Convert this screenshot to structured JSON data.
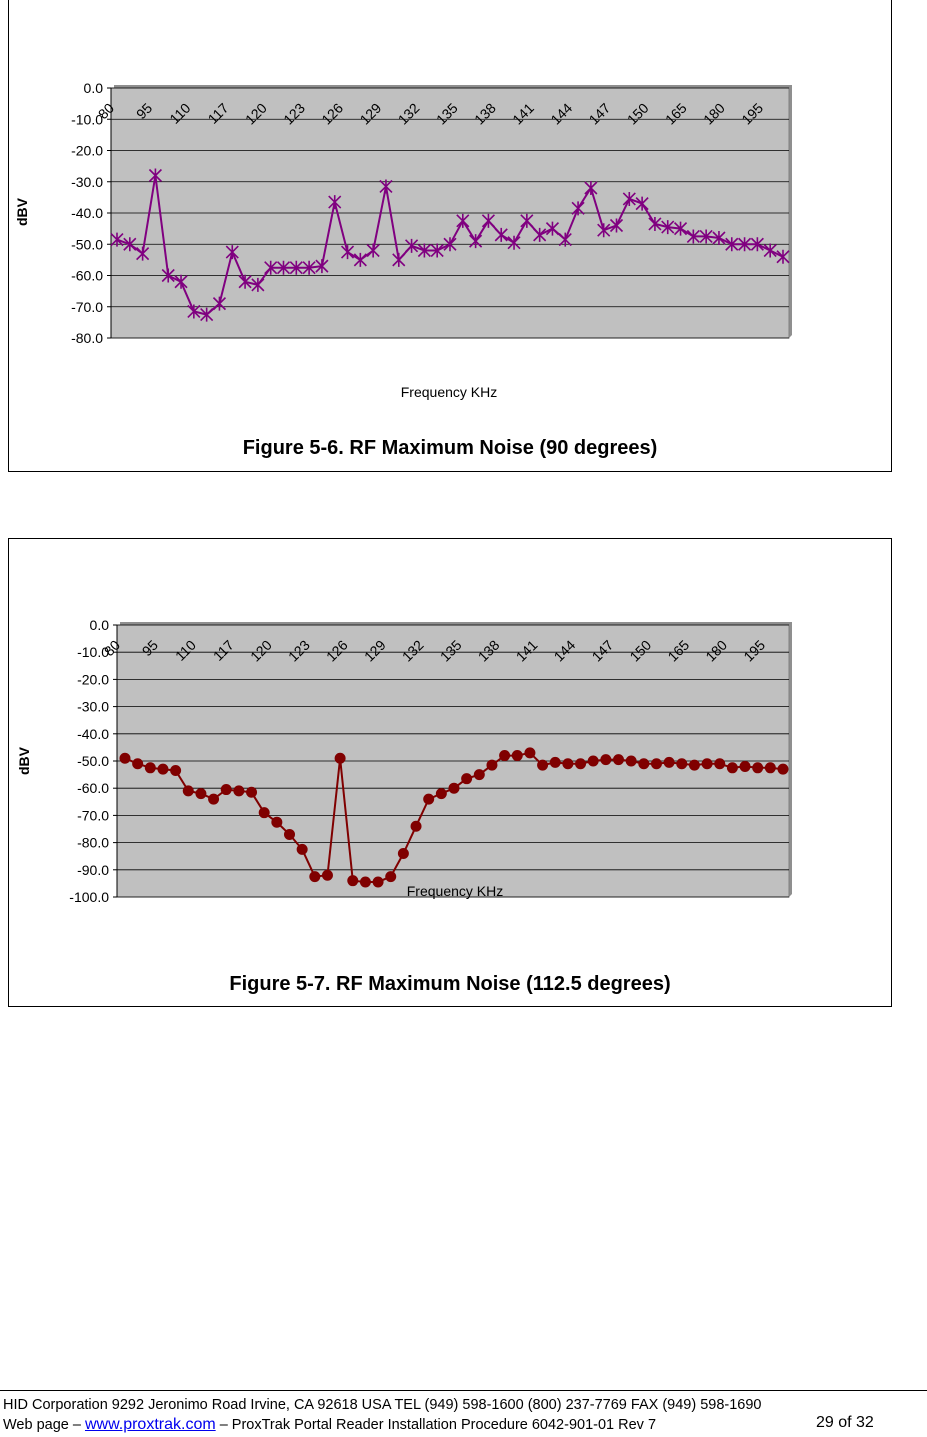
{
  "figures": [
    {
      "caption": "Figure 5-6. RF Maximum Noise (90 degrees)"
    },
    {
      "caption": "Figure 5-7. RF Maximum Noise (112.5 degrees)"
    }
  ],
  "chart_data": [
    {
      "type": "line",
      "title": "",
      "xlabel": "Frequency KHz",
      "ylabel": "dBV",
      "ylim": [
        -80,
        0
      ],
      "yticks": [
        "0.0",
        "-10.0",
        "-20.0",
        "-30.0",
        "-40.0",
        "-50.0",
        "-60.0",
        "-70.0",
        "-80.0"
      ],
      "xtick_labels": [
        "80",
        "95",
        "110",
        "117",
        "120",
        "123",
        "126",
        "129",
        "132",
        "135",
        "138",
        "141",
        "144",
        "147",
        "150",
        "165",
        "180",
        "195"
      ],
      "marker": "star",
      "color": "#800080",
      "grid": true,
      "plot_background": "#c0c0c0",
      "values": [
        -48.5,
        -50,
        -53,
        -28,
        -60,
        -62,
        -71.5,
        -72.5,
        -69,
        -52.5,
        -62,
        -63,
        -57.5,
        -57.5,
        -57.5,
        -57.5,
        -57,
        -36.5,
        -52.5,
        -55,
        -52,
        -31.5,
        -55,
        -50.5,
        -52,
        -52,
        -50,
        -42.5,
        -49,
        -42.5,
        -47,
        -49.5,
        -42.5,
        -47,
        -45,
        -48.5,
        -38.5,
        -32,
        -45.5,
        -44,
        -35.5,
        -37,
        -43.5,
        -44.5,
        -45,
        -47.5,
        -47.5,
        -48,
        -50,
        -50,
        -50,
        -52,
        -54
      ]
    },
    {
      "type": "line",
      "title": "",
      "xlabel": "Frequency KHz",
      "ylabel": "dBV",
      "ylim": [
        -100,
        0
      ],
      "yticks": [
        "0.0",
        "-10.0",
        "-20.0",
        "-30.0",
        "-40.0",
        "-50.0",
        "-60.0",
        "-70.0",
        "-80.0",
        "-90.0",
        "-100.0"
      ],
      "xtick_labels": [
        "80",
        "95",
        "110",
        "117",
        "120",
        "123",
        "126",
        "129",
        "132",
        "135",
        "138",
        "141",
        "144",
        "147",
        "150",
        "165",
        "180",
        "195"
      ],
      "marker": "circle",
      "color": "#800000",
      "grid": true,
      "plot_background": "#c0c0c0",
      "values": [
        -49,
        -51,
        -52.5,
        -53,
        -53.5,
        -61,
        -62,
        -64,
        -60.5,
        -61,
        -61.5,
        -69,
        -72.5,
        -77,
        -82.5,
        -92.5,
        -92,
        -49,
        -94,
        -94.5,
        -94.5,
        -92.5,
        -84,
        -74,
        -64,
        -62,
        -60,
        -56.5,
        -55,
        -51.5,
        -48,
        -48,
        -47,
        -51.5,
        -50.5,
        -51,
        -51,
        -50,
        -49.5,
        -49.5,
        -50,
        -51,
        -51,
        -50.5,
        -51,
        -51.5,
        -51,
        -51,
        -52.5,
        -52,
        -52.5,
        -52.5,
        -53
      ]
    }
  ],
  "footer": {
    "line1": "HID Corporation 9292 Jeronimo Road Irvine, CA 92618 USA TEL (949) 598-1600  (800) 237-7769  FAX (949) 598-1690",
    "web_prefix": "Web page – ",
    "web_link": "www.proxtrak.com",
    "doc_info": " –  ProxTrak Portal Reader Installation Procedure    6042-901-01 Rev 7",
    "page_number": "29 of 32"
  }
}
